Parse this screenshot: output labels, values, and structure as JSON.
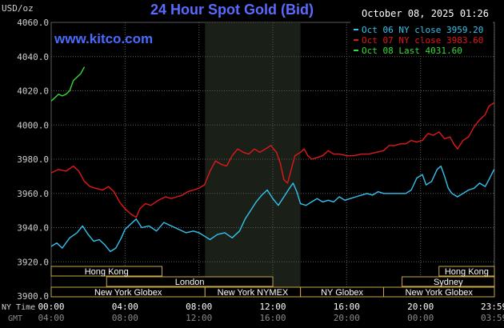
{
  "header": {
    "unit": "USD/oz",
    "title": "24 Hour Spot Gold (Bid)",
    "timestamp": "October 08, 2025 01:26",
    "watermark": "www.kitco.com"
  },
  "colors": {
    "background": "#000000",
    "grid": "#5a5a5a",
    "axis_text": "#cfcfcf",
    "title": "#5b6bff",
    "watermark": "#4b6bff",
    "session_box_fill": "#000000",
    "session_box_stroke": "#c8a84a",
    "session_text": "#ffffff",
    "shaded_region": "#1a1f17"
  },
  "chart_data": {
    "type": "line",
    "title": "24 Hour Spot Gold (Bid)",
    "ylabel": "USD/oz",
    "ylim": [
      3900,
      4060
    ],
    "yticks": [
      3900.0,
      3920.0,
      3940.0,
      3960.0,
      3980.0,
      4000.0,
      4020.0,
      4040.0,
      4060.0
    ],
    "ytick_labels": [
      "3900.0",
      "3920.0",
      "3940.0",
      "3960.0",
      "3980.0",
      "4000.0",
      "4020.0",
      "4040.0",
      "4060.0"
    ],
    "xlim": [
      0,
      24
    ],
    "xticks": [
      0,
      4,
      8,
      12,
      16,
      20,
      23.983
    ],
    "xtick_labels_ny": [
      "00:00",
      "04:00",
      "08:00",
      "12:00",
      "16:00",
      "20:00",
      "23:59"
    ],
    "xtick_labels_gmt": [
      "04:00",
      "08:00",
      "12:00",
      "16:00",
      "20:00",
      "00:00",
      "03:59"
    ],
    "x_row_labels": {
      "ny": "NY Time",
      "gmt": "GMT"
    },
    "grid": true,
    "legend_position": "top-right",
    "shaded_hours": [
      8.33,
      13.5
    ],
    "series": [
      {
        "name": "Oct 06 NY close 3959.20",
        "color": "#33c3f0",
        "points": [
          [
            0,
            3929
          ],
          [
            0.3,
            3931
          ],
          [
            0.6,
            3928
          ],
          [
            1,
            3934
          ],
          [
            1.4,
            3937
          ],
          [
            1.7,
            3941
          ],
          [
            2,
            3936
          ],
          [
            2.3,
            3932
          ],
          [
            2.6,
            3933
          ],
          [
            2.9,
            3930
          ],
          [
            3.2,
            3926
          ],
          [
            3.5,
            3928
          ],
          [
            3.8,
            3934
          ],
          [
            4,
            3939
          ],
          [
            4.3,
            3942
          ],
          [
            4.6,
            3945
          ],
          [
            4.9,
            3940
          ],
          [
            5.3,
            3941
          ],
          [
            5.7,
            3938
          ],
          [
            6.1,
            3943
          ],
          [
            6.5,
            3941
          ],
          [
            6.9,
            3939
          ],
          [
            7.3,
            3937
          ],
          [
            7.7,
            3938
          ],
          [
            8,
            3937
          ],
          [
            8.3,
            3935
          ],
          [
            8.6,
            3933
          ],
          [
            9,
            3936
          ],
          [
            9.4,
            3937
          ],
          [
            9.8,
            3934
          ],
          [
            10.2,
            3938
          ],
          [
            10.5,
            3945
          ],
          [
            10.8,
            3950
          ],
          [
            11.1,
            3955
          ],
          [
            11.4,
            3959
          ],
          [
            11.7,
            3962
          ],
          [
            12,
            3957
          ],
          [
            12.3,
            3953
          ],
          [
            12.6,
            3958
          ],
          [
            12.9,
            3963
          ],
          [
            13.1,
            3966
          ],
          [
            13.3,
            3961
          ],
          [
            13.5,
            3954
          ],
          [
            13.8,
            3953
          ],
          [
            14.1,
            3955
          ],
          [
            14.4,
            3957
          ],
          [
            14.7,
            3955
          ],
          [
            15,
            3956
          ],
          [
            15.3,
            3955
          ],
          [
            15.6,
            3958
          ],
          [
            15.9,
            3956
          ],
          [
            16.2,
            3957
          ],
          [
            16.5,
            3958
          ],
          [
            16.8,
            3959
          ],
          [
            17.1,
            3960
          ],
          [
            17.4,
            3959
          ],
          [
            17.7,
            3961
          ],
          [
            18,
            3960
          ],
          [
            18.3,
            3960
          ],
          [
            18.6,
            3960
          ],
          [
            18.9,
            3960
          ],
          [
            19.2,
            3960
          ],
          [
            19.5,
            3962
          ],
          [
            19.8,
            3969
          ],
          [
            20.1,
            3971
          ],
          [
            20.3,
            3965
          ],
          [
            20.6,
            3967
          ],
          [
            20.9,
            3974
          ],
          [
            21.1,
            3976
          ],
          [
            21.3,
            3970
          ],
          [
            21.5,
            3963
          ],
          [
            21.7,
            3960
          ],
          [
            22,
            3958
          ],
          [
            22.3,
            3960
          ],
          [
            22.6,
            3962
          ],
          [
            22.9,
            3963
          ],
          [
            23.2,
            3966
          ],
          [
            23.5,
            3964
          ],
          [
            23.7,
            3968
          ],
          [
            23.983,
            3974
          ]
        ]
      },
      {
        "name": "Oct 07 NY close 3983.60",
        "color": "#e01818",
        "points": [
          [
            0,
            3972
          ],
          [
            0.4,
            3974
          ],
          [
            0.8,
            3973
          ],
          [
            1.2,
            3976
          ],
          [
            1.5,
            3973
          ],
          [
            1.8,
            3967
          ],
          [
            2.1,
            3964
          ],
          [
            2.4,
            3963
          ],
          [
            2.8,
            3962
          ],
          [
            3.1,
            3964
          ],
          [
            3.4,
            3961
          ],
          [
            3.7,
            3955
          ],
          [
            4,
            3951
          ],
          [
            4.3,
            3948
          ],
          [
            4.6,
            3946
          ],
          [
            4.8,
            3951
          ],
          [
            5.1,
            3954
          ],
          [
            5.4,
            3953
          ],
          [
            5.8,
            3956
          ],
          [
            6.2,
            3958
          ],
          [
            6.5,
            3957
          ],
          [
            6.8,
            3958
          ],
          [
            7.1,
            3959
          ],
          [
            7.4,
            3961
          ],
          [
            7.7,
            3962
          ],
          [
            8,
            3963
          ],
          [
            8.3,
            3965
          ],
          [
            8.6,
            3973
          ],
          [
            8.9,
            3979
          ],
          [
            9.2,
            3977
          ],
          [
            9.5,
            3976
          ],
          [
            9.8,
            3982
          ],
          [
            10.1,
            3986
          ],
          [
            10.4,
            3984
          ],
          [
            10.7,
            3983
          ],
          [
            11,
            3986
          ],
          [
            11.3,
            3984
          ],
          [
            11.6,
            3986
          ],
          [
            11.9,
            3988
          ],
          [
            12.2,
            3984
          ],
          [
            12.4,
            3978
          ],
          [
            12.6,
            3968
          ],
          [
            12.8,
            3966
          ],
          [
            13,
            3974
          ],
          [
            13.2,
            3982
          ],
          [
            13.5,
            3984
          ],
          [
            13.7,
            3986
          ],
          [
            13.9,
            3982
          ],
          [
            14.1,
            3980
          ],
          [
            14.4,
            3981
          ],
          [
            14.7,
            3982
          ],
          [
            15,
            3985
          ],
          [
            15.3,
            3983
          ],
          [
            15.6,
            3983
          ],
          [
            16,
            3982
          ],
          [
            16.4,
            3982
          ],
          [
            16.8,
            3983
          ],
          [
            17.2,
            3983
          ],
          [
            17.6,
            3984
          ],
          [
            18,
            3985
          ],
          [
            18.3,
            3988
          ],
          [
            18.6,
            3988
          ],
          [
            18.9,
            3989
          ],
          [
            19.2,
            3989
          ],
          [
            19.5,
            3991
          ],
          [
            19.8,
            3990
          ],
          [
            20.1,
            3991
          ],
          [
            20.4,
            3995
          ],
          [
            20.7,
            3994
          ],
          [
            21,
            3996
          ],
          [
            21.3,
            3992
          ],
          [
            21.6,
            3993
          ],
          [
            21.8,
            3989
          ],
          [
            22,
            3986
          ],
          [
            22.3,
            3991
          ],
          [
            22.6,
            3993
          ],
          [
            22.9,
            3999
          ],
          [
            23.2,
            4003
          ],
          [
            23.5,
            4006
          ],
          [
            23.7,
            4011
          ],
          [
            23.983,
            4013
          ]
        ]
      },
      {
        "name": "Oct 08 Last 4031.60",
        "color": "#33dd33",
        "points": [
          [
            0,
            4014
          ],
          [
            0.2,
            4016
          ],
          [
            0.4,
            4018
          ],
          [
            0.6,
            4017
          ],
          [
            0.8,
            4018
          ],
          [
            1,
            4020
          ],
          [
            1.2,
            4026
          ],
          [
            1.4,
            4028
          ],
          [
            1.6,
            4030
          ],
          [
            1.8,
            4034
          ]
        ]
      }
    ],
    "sessions": [
      {
        "label": "Hong Kong",
        "start": 0,
        "end": 6,
        "row": 0
      },
      {
        "label": "London",
        "start": 3,
        "end": 12,
        "row": 1
      },
      {
        "label": "New York Globex",
        "start": 0,
        "end": 8.33,
        "row": 2
      },
      {
        "label": "New York NYMEX",
        "start": 8.33,
        "end": 13.5,
        "row": 2
      },
      {
        "label": "NY Globex",
        "start": 13.5,
        "end": 18,
        "row": 2
      },
      {
        "label": "Hong Kong",
        "start": 21,
        "end": 24,
        "row": 0
      },
      {
        "label": "Sydney",
        "start": 19,
        "end": 24,
        "row": 1
      },
      {
        "label": "New York Globex",
        "start": 18,
        "end": 24,
        "row": 2
      }
    ]
  }
}
